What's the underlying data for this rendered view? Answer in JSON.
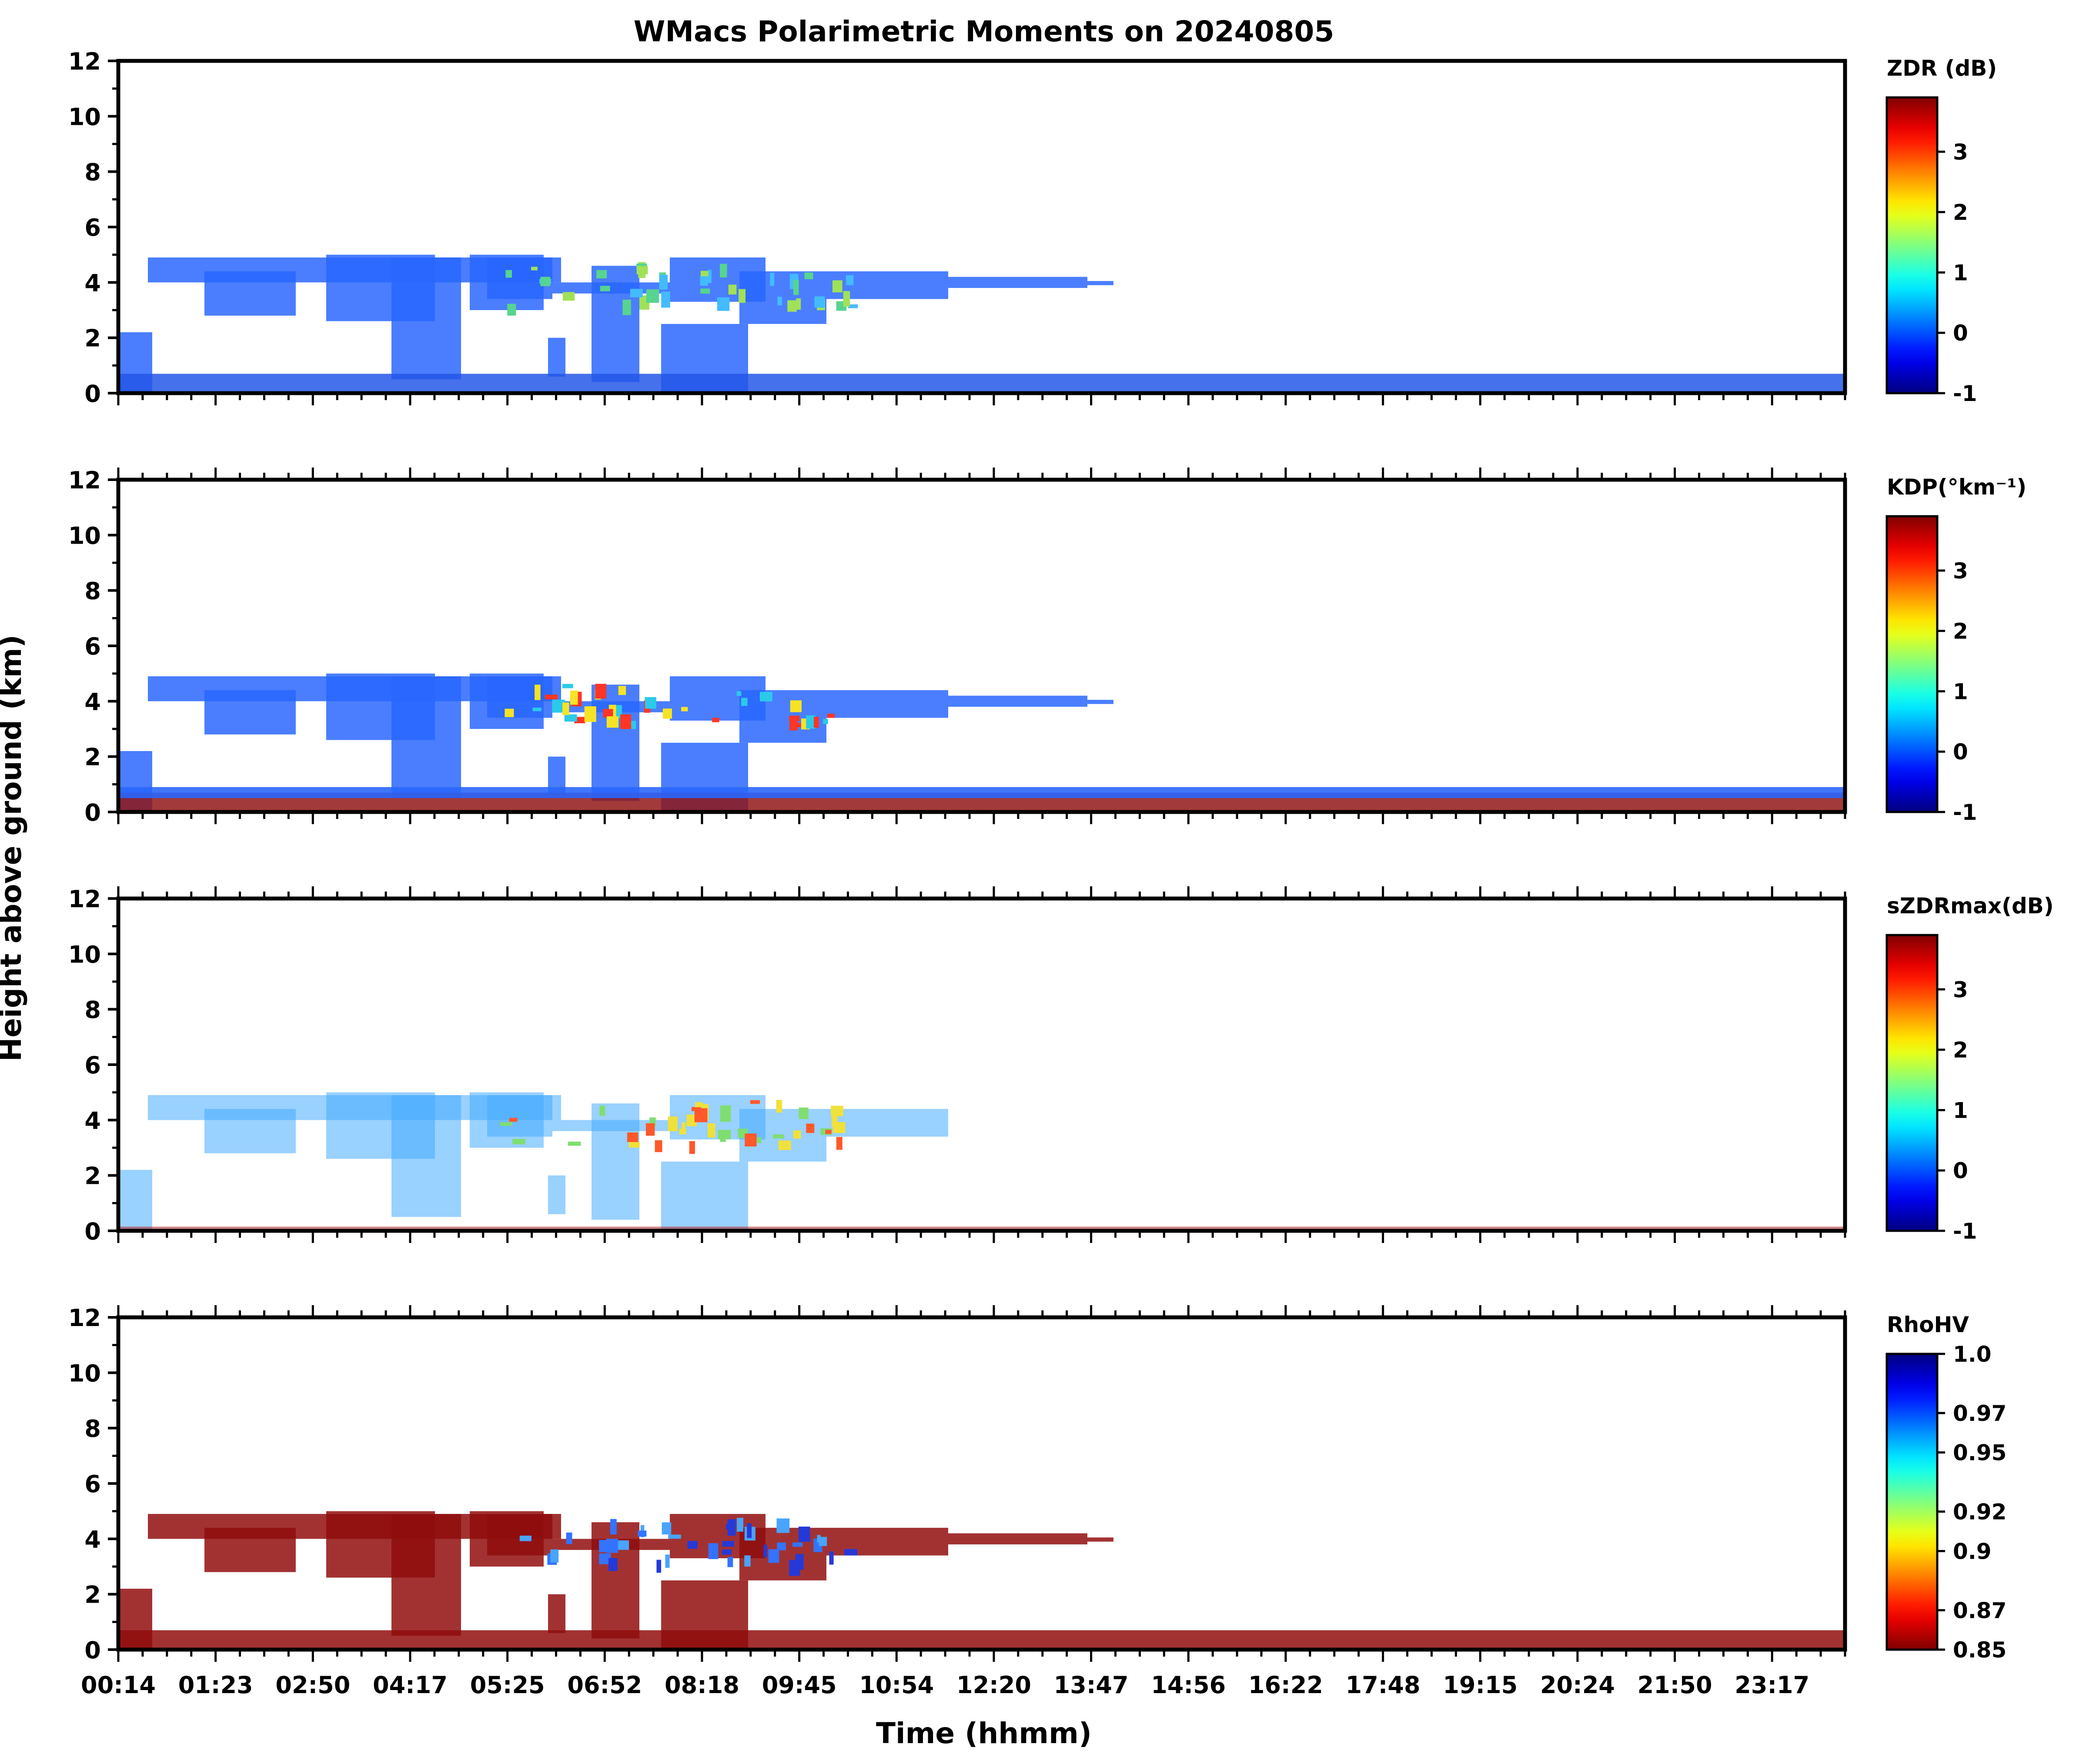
{
  "figure": {
    "title": "WMacs Polarimetric Moments on 20240805",
    "ylabel": "Height above ground (km)",
    "xlabel": "Time (hhmm)"
  },
  "chart_data": [
    {
      "type": "heatmap",
      "id": "zdr",
      "colorbar_label": "ZDR (dB)",
      "colormap": "jet",
      "clim": [
        -1,
        3.9
      ],
      "colorbar_ticks": [
        "-1",
        "0",
        "1",
        "2",
        "3"
      ],
      "colorbar_tick_values": [
        -1,
        0,
        1,
        2,
        3
      ],
      "ylim": [
        0,
        12
      ],
      "y_ticks": [
        0,
        2,
        4,
        6,
        8,
        10,
        12
      ],
      "dominant_color": "#1f5fff",
      "base_color": "#1a4fe6",
      "highlight_colors": [
        "#4fd28a",
        "#9be050",
        "#3ab8ff"
      ]
    },
    {
      "type": "heatmap",
      "id": "kdp",
      "colorbar_label": "KDP(°km⁻¹)",
      "colormap": "jet",
      "clim": [
        -1,
        3.9
      ],
      "colorbar_ticks": [
        "-1",
        "0",
        "1",
        "2",
        "3"
      ],
      "colorbar_tick_values": [
        -1,
        0,
        1,
        2,
        3
      ],
      "ylim": [
        0,
        12
      ],
      "y_ticks": [
        0,
        2,
        4,
        6,
        8,
        10,
        12
      ],
      "dominant_color": "#1f5fff",
      "base_color": "#8b0a0a",
      "highlight_colors": [
        "#ff2b1a",
        "#f6e21a",
        "#20c8e8"
      ]
    },
    {
      "type": "heatmap",
      "id": "szdrmax",
      "colorbar_label": "sZDRmax(dB)",
      "colormap": "jet",
      "clim": [
        -1,
        3.9
      ],
      "colorbar_ticks": [
        "-1",
        "0",
        "1",
        "2",
        "3"
      ],
      "colorbar_tick_values": [
        -1,
        0,
        1,
        2,
        3
      ],
      "ylim": [
        0,
        12
      ],
      "y_ticks": [
        0,
        2,
        4,
        6,
        8,
        10,
        12
      ],
      "dominant_color": "#3aa6ff",
      "base_color": "#b02a2a",
      "highlight_colors": [
        "#f0e030",
        "#ff5020",
        "#7adc6a"
      ]
    },
    {
      "type": "heatmap",
      "id": "rhohv",
      "colorbar_label": "RhoHV",
      "colormap": "jet_r",
      "clim": [
        0.85,
        1.0
      ],
      "colorbar_ticks": [
        "1.0",
        "0.97",
        "0.95",
        "0.92",
        "0.9",
        "0.87",
        "0.85"
      ],
      "colorbar_tick_values": [
        1.0,
        0.97,
        0.95,
        0.92,
        0.9,
        0.87,
        0.85
      ],
      "ylim": [
        0,
        12
      ],
      "y_ticks": [
        0,
        2,
        4,
        6,
        8,
        10,
        12
      ],
      "dominant_color": "#8b0000",
      "base_color": "#8b0000",
      "highlight_colors": [
        "#1a2fd6",
        "#2a6cff",
        "#3fa0ff"
      ]
    }
  ],
  "time_axis": {
    "tick_labels": [
      "00:14",
      "01:23",
      "02:50",
      "04:17",
      "05:25",
      "06:52",
      "08:18",
      "09:45",
      "10:54",
      "12:20",
      "13:47",
      "14:56",
      "16:22",
      "17:48",
      "19:15",
      "20:24",
      "21:50",
      "23:17"
    ]
  }
}
